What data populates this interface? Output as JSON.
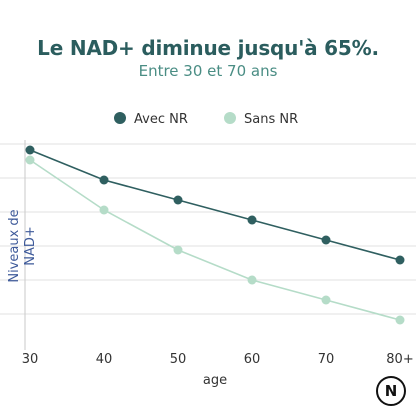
{
  "title": "Le NAD+ diminue jusqu'à 65%.",
  "subtitle": "Entre 30 et 70 ans",
  "logo": {
    "label": "N",
    "icon": "brand-logo-icon"
  },
  "colors": {
    "avec": "#2f5f60",
    "sans": "#b5dcc8",
    "title": "#2b5d5e",
    "grid": "#e2e2e2"
  },
  "chart_data": {
    "type": "line",
    "x": [
      30,
      40,
      50,
      60,
      70,
      80
    ],
    "x_tick_labels": [
      "30",
      "40",
      "50",
      "60",
      "70",
      "80+"
    ],
    "xlabel": "age",
    "ylabel": "Niveaux de NAD+",
    "ylabel_lines": [
      "Niveaux de",
      "NAD+"
    ],
    "ylim": [
      0,
      105
    ],
    "grid": true,
    "legend_position": "top",
    "series": [
      {
        "name": "Avec NR",
        "color": "#2f5f60",
        "values": [
          100,
          85,
          75,
          65,
          55,
          45
        ]
      },
      {
        "name": "Sans NR",
        "color": "#b5dcc8",
        "values": [
          95,
          70,
          50,
          35,
          25,
          15
        ]
      }
    ]
  }
}
